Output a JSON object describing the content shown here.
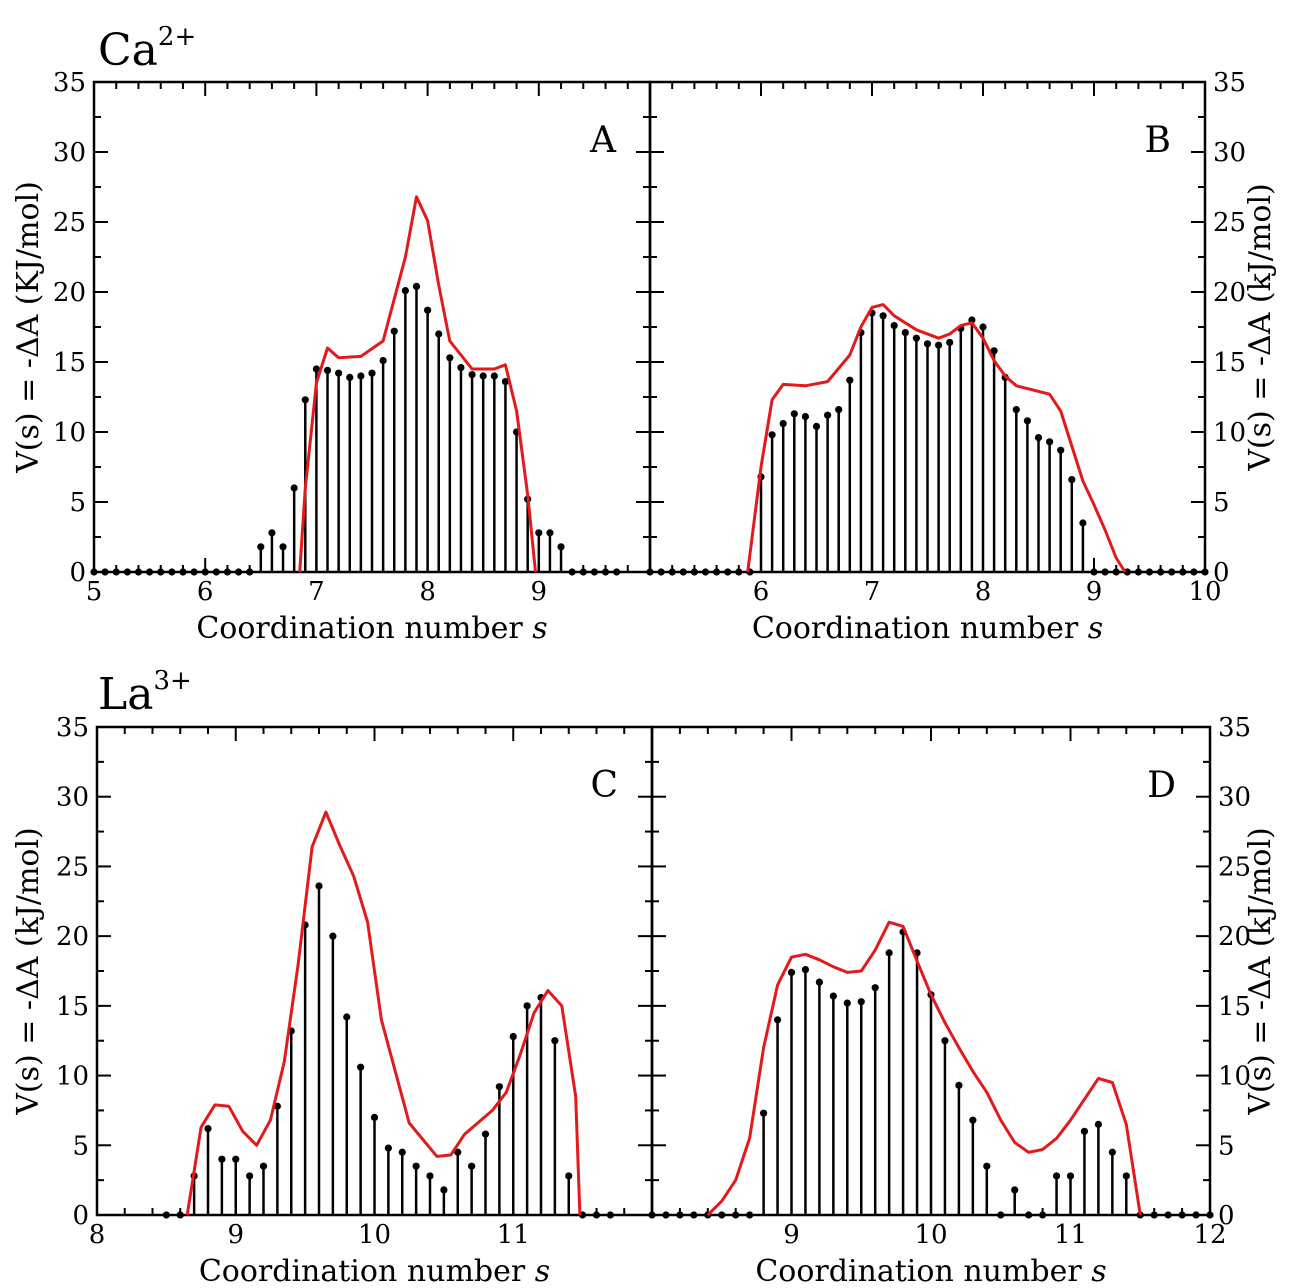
{
  "groups": [
    {
      "ion": "Ca",
      "charge": "2+"
    },
    {
      "ion": "La",
      "charge": "3+"
    }
  ],
  "chart_data": [
    {
      "type": "bar",
      "panel": "A",
      "xlabel": "Coordination number s",
      "ylabel": "V(s) = -ΔA (KJ/mol)",
      "xlim": [
        5,
        10
      ],
      "ylim": [
        0,
        35
      ],
      "xticks": [
        "5",
        "6",
        "7",
        "8",
        "9"
      ],
      "yticks": [
        "0",
        "5",
        "10",
        "15",
        "20",
        "25",
        "30",
        "35"
      ],
      "series": [
        {
          "kind": "stem",
          "color": "#000000",
          "x": [
            5.0,
            5.1,
            5.2,
            5.3,
            5.4,
            5.5,
            5.6,
            5.7,
            5.8,
            5.9,
            6.0,
            6.1,
            6.2,
            6.3,
            6.4,
            6.5,
            6.6,
            6.7,
            6.8,
            6.9,
            7.0,
            7.1,
            7.2,
            7.3,
            7.4,
            7.5,
            7.6,
            7.7,
            7.8,
            7.9,
            8.0,
            8.1,
            8.2,
            8.3,
            8.4,
            8.5,
            8.6,
            8.7,
            8.8,
            8.9,
            9.0,
            9.1,
            9.2,
            9.3,
            9.4,
            9.5,
            9.6,
            9.7
          ],
          "y": [
            0,
            0,
            0,
            0,
            0,
            0,
            0,
            0,
            0,
            0,
            0,
            0,
            0,
            0,
            0,
            1.8,
            2.8,
            1.8,
            6.0,
            12.3,
            14.5,
            14.4,
            14.2,
            13.9,
            14.0,
            14.2,
            15.1,
            17.2,
            20.1,
            20.4,
            18.7,
            17.0,
            15.3,
            14.6,
            14.1,
            14.0,
            14.0,
            13.6,
            10.0,
            5.2,
            2.8,
            2.8,
            1.8,
            0,
            0,
            0,
            0,
            0
          ]
        },
        {
          "kind": "line",
          "color": "#e31a1c",
          "x": [
            6.85,
            6.9,
            7.0,
            7.1,
            7.2,
            7.4,
            7.6,
            7.8,
            7.9,
            8.0,
            8.1,
            8.2,
            8.4,
            8.6,
            8.7,
            8.8,
            8.9,
            8.97
          ],
          "y": [
            0,
            6,
            13.5,
            16.0,
            15.3,
            15.4,
            16.5,
            22.5,
            26.8,
            25.1,
            20.5,
            16.5,
            14.5,
            14.5,
            14.8,
            11.5,
            5.5,
            0
          ]
        }
      ]
    },
    {
      "type": "bar",
      "panel": "B",
      "xlabel": "Coordination number s",
      "ylabel": "V(s) = -ΔA (kJ/mol)",
      "xlim": [
        5,
        10
      ],
      "ylim": [
        0,
        35
      ],
      "xticks": [
        "6",
        "7",
        "8",
        "9",
        "10"
      ],
      "yticks": [
        "0",
        "5",
        "10",
        "15",
        "20",
        "25",
        "30",
        "35"
      ],
      "series": [
        {
          "kind": "stem",
          "color": "#000000",
          "x": [
            5.0,
            5.1,
            5.2,
            5.3,
            5.4,
            5.5,
            5.6,
            5.7,
            5.8,
            5.9,
            6.0,
            6.1,
            6.2,
            6.3,
            6.4,
            6.5,
            6.6,
            6.7,
            6.8,
            6.9,
            7.0,
            7.1,
            7.2,
            7.3,
            7.4,
            7.5,
            7.6,
            7.7,
            7.8,
            7.9,
            8.0,
            8.1,
            8.2,
            8.3,
            8.4,
            8.5,
            8.6,
            8.7,
            8.8,
            8.9,
            9.0,
            9.1,
            9.2,
            9.3,
            9.4,
            9.5,
            9.6,
            9.7,
            9.8,
            9.9,
            10.0
          ],
          "y": [
            0,
            0,
            0,
            0,
            0,
            0,
            0,
            0,
            0,
            0,
            6.8,
            9.8,
            10.6,
            11.3,
            11.1,
            10.4,
            11.2,
            11.6,
            13.7,
            17.1,
            18.5,
            18.3,
            17.6,
            17.1,
            16.7,
            16.3,
            16.2,
            16.4,
            17.4,
            18.0,
            17.5,
            15.8,
            13.9,
            11.6,
            10.8,
            9.6,
            9.3,
            8.7,
            6.6,
            3.5,
            0,
            0,
            0,
            0,
            0,
            0,
            0,
            0,
            0,
            0,
            0
          ]
        },
        {
          "kind": "line",
          "color": "#e31a1c",
          "x": [
            5.88,
            6.0,
            6.1,
            6.2,
            6.4,
            6.6,
            6.8,
            6.9,
            7.0,
            7.1,
            7.2,
            7.4,
            7.6,
            7.7,
            7.8,
            7.9,
            8.0,
            8.1,
            8.2,
            8.3,
            8.4,
            8.6,
            8.7,
            8.8,
            8.9,
            9.0,
            9.1,
            9.2,
            9.28
          ],
          "y": [
            0,
            7.5,
            12.3,
            13.4,
            13.3,
            13.6,
            15.5,
            17.5,
            18.9,
            19.1,
            18.3,
            17.3,
            16.7,
            17.0,
            17.6,
            17.8,
            16.7,
            15.1,
            14.0,
            13.3,
            13.1,
            12.7,
            11.5,
            9.0,
            6.5,
            4.8,
            3.0,
            1.0,
            0
          ]
        }
      ]
    },
    {
      "type": "bar",
      "panel": "C",
      "xlabel": "Coordination number s",
      "ylabel": "V(s) = -ΔA (kJ/mol)",
      "xlim": [
        8,
        12
      ],
      "ylim": [
        0,
        35
      ],
      "xticks": [
        "8",
        "9",
        "10",
        "11"
      ],
      "yticks": [
        "0",
        "5",
        "10",
        "15",
        "20",
        "25",
        "30",
        "35"
      ],
      "series": [
        {
          "kind": "stem",
          "color": "#000000",
          "x": [
            8.5,
            8.6,
            8.7,
            8.8,
            8.9,
            9.0,
            9.1,
            9.2,
            9.3,
            9.4,
            9.5,
            9.6,
            9.7,
            9.8,
            9.9,
            10.0,
            10.1,
            10.2,
            10.3,
            10.4,
            10.5,
            10.6,
            10.7,
            10.8,
            10.9,
            11.0,
            11.1,
            11.2,
            11.3,
            11.4,
            11.5,
            11.6,
            11.7
          ],
          "y": [
            0,
            0,
            2.8,
            6.2,
            4.0,
            4.0,
            2.8,
            3.5,
            7.8,
            13.2,
            20.8,
            23.6,
            20.0,
            14.2,
            10.6,
            7.0,
            4.8,
            4.5,
            3.5,
            2.8,
            1.8,
            4.5,
            3.5,
            5.8,
            9.2,
            12.8,
            15.0,
            15.6,
            12.5,
            2.8,
            0,
            0,
            0
          ]
        },
        {
          "kind": "line",
          "color": "#e31a1c",
          "x": [
            8.65,
            8.75,
            8.85,
            8.95,
            9.05,
            9.15,
            9.25,
            9.35,
            9.45,
            9.55,
            9.65,
            9.75,
            9.85,
            9.95,
            10.05,
            10.25,
            10.45,
            10.55,
            10.65,
            10.85,
            10.95,
            11.05,
            11.15,
            11.25,
            11.35,
            11.45,
            11.48
          ],
          "y": [
            0,
            6.3,
            7.9,
            7.8,
            6.0,
            5.0,
            6.8,
            11.0,
            18.0,
            26.4,
            28.9,
            26.5,
            24.3,
            21.0,
            14.0,
            6.6,
            4.2,
            4.3,
            5.8,
            7.5,
            8.8,
            11.5,
            14.5,
            16.1,
            15.0,
            8.5,
            0
          ]
        }
      ]
    },
    {
      "type": "bar",
      "panel": "D",
      "xlabel": "Coordination number s",
      "ylabel": "V(s) = -ΔA (kJ/mol)",
      "xlim": [
        8,
        12
      ],
      "ylim": [
        0,
        35
      ],
      "xticks": [
        "9",
        "10",
        "11",
        "12"
      ],
      "yticks": [
        "0",
        "5",
        "10",
        "15",
        "20",
        "25",
        "30",
        "35"
      ],
      "series": [
        {
          "kind": "stem",
          "color": "#000000",
          "x": [
            8.0,
            8.1,
            8.2,
            8.3,
            8.4,
            8.5,
            8.6,
            8.7,
            8.8,
            8.9,
            9.0,
            9.1,
            9.2,
            9.3,
            9.4,
            9.5,
            9.6,
            9.7,
            9.8,
            9.9,
            10.0,
            10.1,
            10.2,
            10.3,
            10.4,
            10.5,
            10.6,
            10.7,
            10.8,
            10.9,
            11.0,
            11.1,
            11.2,
            11.3,
            11.4,
            11.5,
            11.6,
            11.7,
            11.8,
            11.9,
            12.0
          ],
          "y": [
            0,
            0,
            0,
            0,
            0,
            0,
            0,
            0,
            7.3,
            14.0,
            17.4,
            17.6,
            16.7,
            15.7,
            15.2,
            15.3,
            16.3,
            18.8,
            20.3,
            18.8,
            15.8,
            12.5,
            9.3,
            6.8,
            3.5,
            0,
            1.8,
            0,
            0,
            2.8,
            2.8,
            6.0,
            6.5,
            4.5,
            2.8,
            0,
            0,
            0,
            0,
            0,
            0
          ]
        },
        {
          "kind": "line",
          "color": "#e31a1c",
          "x": [
            8.4,
            8.5,
            8.6,
            8.7,
            8.8,
            8.9,
            9.0,
            9.1,
            9.2,
            9.3,
            9.4,
            9.5,
            9.6,
            9.7,
            9.8,
            9.9,
            10.0,
            10.1,
            10.2,
            10.3,
            10.4,
            10.5,
            10.6,
            10.7,
            10.8,
            10.9,
            11.0,
            11.1,
            11.2,
            11.3,
            11.4,
            11.5
          ],
          "y": [
            0,
            1.0,
            2.5,
            5.5,
            12.0,
            16.5,
            18.5,
            18.7,
            18.3,
            17.8,
            17.4,
            17.5,
            19.0,
            21.0,
            20.7,
            18.2,
            15.8,
            13.8,
            12.0,
            10.3,
            8.8,
            6.8,
            5.2,
            4.5,
            4.7,
            5.5,
            6.8,
            8.3,
            9.8,
            9.5,
            6.5,
            0
          ]
        }
      ]
    }
  ]
}
